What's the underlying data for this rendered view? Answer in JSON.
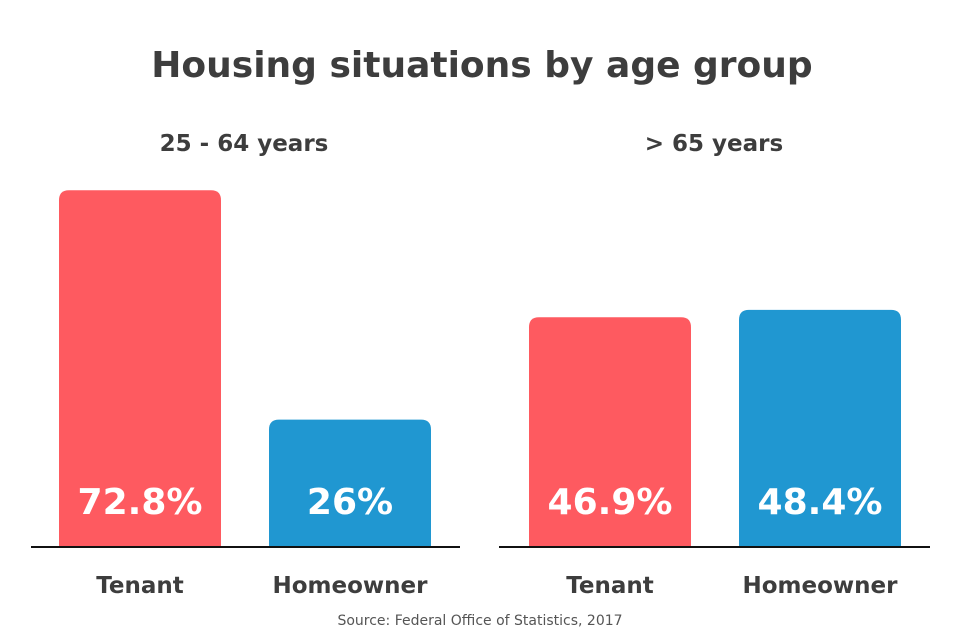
{
  "chart_data": {
    "type": "bar",
    "title": "Housing situations by age group",
    "source": "Source: Federal Office of Statistics, 2017",
    "categories": [
      "Tenant",
      "Homeowner"
    ],
    "groups": [
      {
        "label": "25 - 64 years",
        "values": [
          72.8,
          26
        ],
        "value_labels": [
          "72.8%",
          "26%"
        ]
      },
      {
        "label": "> 65 years",
        "values": [
          46.9,
          48.4
        ],
        "value_labels": [
          "46.9%",
          "48.4%"
        ]
      }
    ],
    "colors": {
      "Tenant": "#fe5a60",
      "Homeowner": "#2097d1"
    },
    "ylim": [
      0,
      75
    ],
    "grid": false,
    "legend": "none"
  }
}
